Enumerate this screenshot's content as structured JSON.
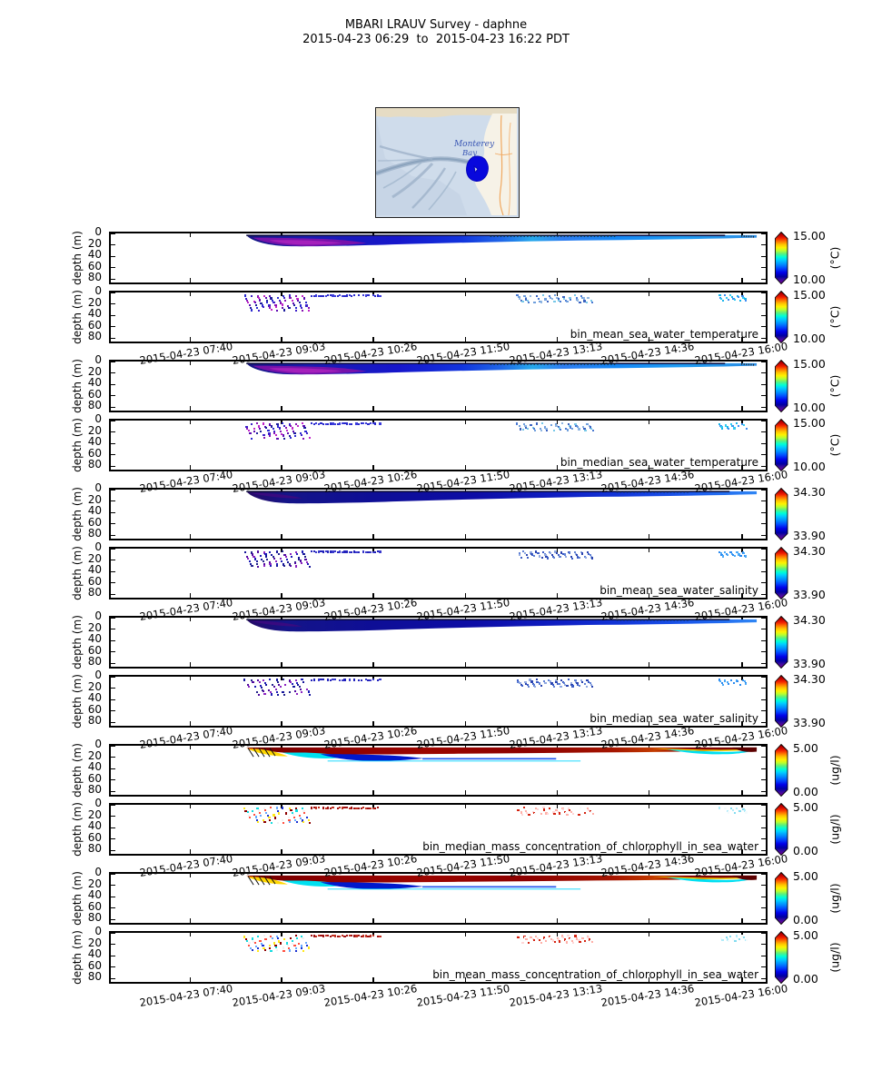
{
  "title": {
    "line1": "MBARI LRAUV Survey - daphne",
    "line2": "2015-04-23 06:29  to  2015-04-23 16:22 PDT"
  },
  "map": {
    "label_line1": "Monterey",
    "label_line2": "Bay",
    "track_color": "#0808dd",
    "sea_color": "#cfdceb",
    "land_color": "#f6f2e7"
  },
  "axes": {
    "ylabel": "depth (m)",
    "y_ticks": [
      "0",
      "20",
      "40",
      "60",
      "80"
    ],
    "x_tick_labels": [
      "2015-04-23 07:40",
      "2015-04-23 09:03",
      "2015-04-23 10:26",
      "2015-04-23 11:50",
      "2015-04-23 13:13",
      "2015-04-23 14:36",
      "2015-04-23 16:00"
    ]
  },
  "colormap_stops": [
    {
      "off": 0.0,
      "c": "#8b0000"
    },
    {
      "off": 0.06,
      "c": "#c00000"
    },
    {
      "off": 0.12,
      "c": "#f22000"
    },
    {
      "off": 0.18,
      "c": "#ff7300"
    },
    {
      "off": 0.24,
      "c": "#ffc400"
    },
    {
      "off": 0.3,
      "c": "#fff200"
    },
    {
      "off": 0.36,
      "c": "#b8ff30"
    },
    {
      "off": 0.42,
      "c": "#58f080"
    },
    {
      "off": 0.48,
      "c": "#00ffd5"
    },
    {
      "off": 0.54,
      "c": "#00cfff"
    },
    {
      "off": 0.62,
      "c": "#0090ff"
    },
    {
      "off": 0.7,
      "c": "#0048ff"
    },
    {
      "off": 0.78,
      "c": "#0000e8"
    },
    {
      "off": 0.86,
      "c": "#0000a0"
    },
    {
      "off": 0.92,
      "c": "#3c0a9e"
    },
    {
      "off": 1.0,
      "c": "#7c008c"
    }
  ],
  "variables": {
    "temperature": {
      "cbar_max": "15.00",
      "cbar_min": "10.00",
      "unit": "(°C)",
      "palettes": {
        "left": [
          "#2a2ad0",
          "#3c20c8",
          "#8812b4",
          "#c025c8",
          "#5c0ab0",
          "#1c1c9c"
        ],
        "top": [
          "#2828cc",
          "#3c3cdc"
        ],
        "mid": [
          "#4b7ad2",
          "#6f9fdd",
          "#8fb6e2",
          "#3a62c0",
          "#77c8e8"
        ],
        "right": [
          "#18b4ea",
          "#3e8ef2",
          "#32cbf2"
        ]
      }
    },
    "salinity": {
      "cbar_max": "34.30",
      "cbar_min": "33.90",
      "unit": "",
      "palettes": {
        "left": [
          "#14149a",
          "#23238c",
          "#4f0a9e",
          "#8c22c0",
          "#1a1ab4"
        ],
        "top": [
          "#2222bb",
          "#3a3acc"
        ],
        "mid": [
          "#3b5cc4",
          "#5f80d4",
          "#8fa8e0",
          "#2a44b0"
        ],
        "right": [
          "#2a8af0",
          "#49a8f6"
        ]
      }
    },
    "chlorophyll": {
      "cbar_max": "5.00",
      "cbar_min": "0.00",
      "unit": "(ug/l)",
      "palettes": {
        "left": [
          "#ffe818",
          "#8c0000",
          "#12dce0",
          "#f2f2f2",
          "#ff5040",
          "#66a8ff",
          "#1830d0"
        ],
        "top": [
          "#a01010",
          "#c03020"
        ],
        "mid": [
          "#ffd6d6",
          "#d42310",
          "#fafafa",
          "#ffb0a8"
        ],
        "right": [
          "#b0ecfa",
          "#f4fbfd",
          "#84dcf0"
        ]
      }
    }
  },
  "panels": [
    {
      "kind": "filled",
      "var": "temperature",
      "label": ""
    },
    {
      "kind": "scatter",
      "var": "temperature",
      "label": "bin_mean_sea_water_temperature"
    },
    {
      "kind": "filled",
      "var": "temperature",
      "label": ""
    },
    {
      "kind": "scatter",
      "var": "temperature",
      "label": "bin_median_sea_water_temperature"
    },
    {
      "kind": "filled",
      "var": "salinity",
      "label": ""
    },
    {
      "kind": "scatter",
      "var": "salinity",
      "label": "bin_mean_sea_water_salinity"
    },
    {
      "kind": "filled",
      "var": "salinity",
      "label": ""
    },
    {
      "kind": "scatter",
      "var": "salinity",
      "label": "bin_median_sea_water_salinity"
    },
    {
      "kind": "filled",
      "var": "chlorophyll",
      "label": ""
    },
    {
      "kind": "scatter",
      "var": "chlorophyll",
      "label": "bin_median_mass_concentration_of_chlorophyll_in_sea_water"
    },
    {
      "kind": "filled",
      "var": "chlorophyll",
      "label": ""
    },
    {
      "kind": "scatter",
      "var": "chlorophyll",
      "label": "bin_mean_mass_concentration_of_chlorophyll_in_sea_water"
    }
  ],
  "chart_data": {
    "type": "heatmap",
    "title": "MBARI LRAUV Survey - daphne",
    "subtitle": "2015-04-23 06:29  to  2015-04-23 16:22 PDT",
    "x_axis": {
      "range": [
        "2015-04-23 06:29",
        "2015-04-23 16:22 PDT"
      ],
      "tick_labels": [
        "2015-04-23 07:40",
        "2015-04-23 09:03",
        "2015-04-23 10:26",
        "2015-04-23 11:50",
        "2015-04-23 13:13",
        "2015-04-23 14:36",
        "2015-04-23 16:00"
      ]
    },
    "y_axis": {
      "label": "depth (m)",
      "ticks": [
        0,
        20,
        40,
        60,
        80
      ],
      "range_m": [
        0,
        93
      ],
      "inverted": true
    },
    "colormap": "rainbow (dark red high to purple low, arrow-extended colorbar)",
    "inset_map": "Monterey Bay basemap with bathymetric canyon shading and dense dark-blue LRAUV track patch near the coast east of the bay center",
    "panels": [
      {
        "row": 1,
        "plot": "heatmap",
        "variable": "bin_mean_sea_water_temperature",
        "colorbar": {
          "min": 10.0,
          "max": 15.0,
          "unit": "°C"
        },
        "summary": "Temperature section in upper ~22 m from ~07:15 to 16:20; coolest ~10 °C (purple) at 10-20 m depth near 07:40-09:00, dark blue ~11 °C midday, cyan-blue ~12.5 °C shallow layer after 13:00"
      },
      {
        "row": 2,
        "plot": "scatter",
        "variable": "bin_mean_sea_water_temperature",
        "colorbar": {
          "min": 10.0,
          "max": 15.0,
          "unit": "°C"
        },
        "summary": "Binned samples 0-22 m: blue/magenta cluster 07:40-08:40, thin blue surface line 08:40-09:40, pale blue cluster 11:50-13:00, cyan cluster ~15:40-16:00"
      },
      {
        "row": 3,
        "plot": "heatmap",
        "variable": "bin_median_sea_water_temperature",
        "colorbar": {
          "min": 10.0,
          "max": 15.0,
          "unit": "°C"
        },
        "summary": "Same pattern as mean temperature section"
      },
      {
        "row": 4,
        "plot": "scatter",
        "variable": "bin_median_sea_water_temperature",
        "colorbar": {
          "min": 10.0,
          "max": 15.0,
          "unit": "°C"
        },
        "summary": "Same clusters as mean temperature scatter"
      },
      {
        "row": 5,
        "plot": "heatmap",
        "variable": "bin_mean_sea_water_salinity",
        "colorbar": {
          "min": 33.9,
          "max": 34.3,
          "unit": ""
        },
        "summary": "Salinity section upper ~22 m, mostly ~34.0-34.05 (dark navy), slightly fresher brighter blue near surface late in day"
      },
      {
        "row": 6,
        "plot": "scatter",
        "variable": "bin_mean_sea_water_salinity",
        "colorbar": {
          "min": 33.9,
          "max": 34.3,
          "unit": ""
        },
        "summary": "Navy/purple dot cluster 07:40-08:40, pale blue cluster 11:50-13:00, blue cluster ~15:40-16:00"
      },
      {
        "row": 7,
        "plot": "heatmap",
        "variable": "bin_median_sea_water_salinity",
        "colorbar": {
          "min": 33.9,
          "max": 34.3,
          "unit": ""
        },
        "summary": "Same pattern as mean salinity section"
      },
      {
        "row": 8,
        "plot": "scatter",
        "variable": "bin_median_sea_water_salinity",
        "colorbar": {
          "min": 33.9,
          "max": 34.3,
          "unit": ""
        },
        "summary": "Same clusters as mean salinity scatter"
      },
      {
        "row": 9,
        "plot": "heatmap",
        "variable": "bin_median_mass_concentration_of_chlorophyll_in_sea_water",
        "colorbar": {
          "min": 0.0,
          "max": 5.0,
          "unit": "ug/l"
        },
        "summary": "Chlorophyll section: near-saturated ~5 ug/l (dark red) surface band all day; low 0.5-1.5 ug/l (blue/cyan) at 10-20 m before 10:30; cyan-yellow wedge then dark red patch near 15:30-16:00"
      },
      {
        "row": 10,
        "plot": "scatter",
        "variable": "bin_median_mass_concentration_of_chlorophyll_in_sea_water",
        "colorbar": {
          "min": 0.0,
          "max": 5.0,
          "unit": "ug/l"
        },
        "summary": "Mixed yellow/dark-red/cyan/white dots 07:40-08:40 in upper 20 m, faint pink/white cluster 11:50-13:00, pale cluster ~15:50"
      },
      {
        "row": 11,
        "plot": "heatmap",
        "variable": "bin_mean_mass_concentration_of_chlorophyll_in_sea_water",
        "colorbar": {
          "min": 0.0,
          "max": 5.0,
          "unit": "ug/l"
        },
        "summary": "Same pattern as median chlorophyll section"
      },
      {
        "row": 12,
        "plot": "scatter",
        "variable": "bin_mean_mass_concentration_of_chlorophyll_in_sea_water",
        "colorbar": {
          "min": 0.0,
          "max": 5.0,
          "unit": "ug/l"
        },
        "summary": "Same clusters as median chlorophyll scatter"
      }
    ]
  }
}
